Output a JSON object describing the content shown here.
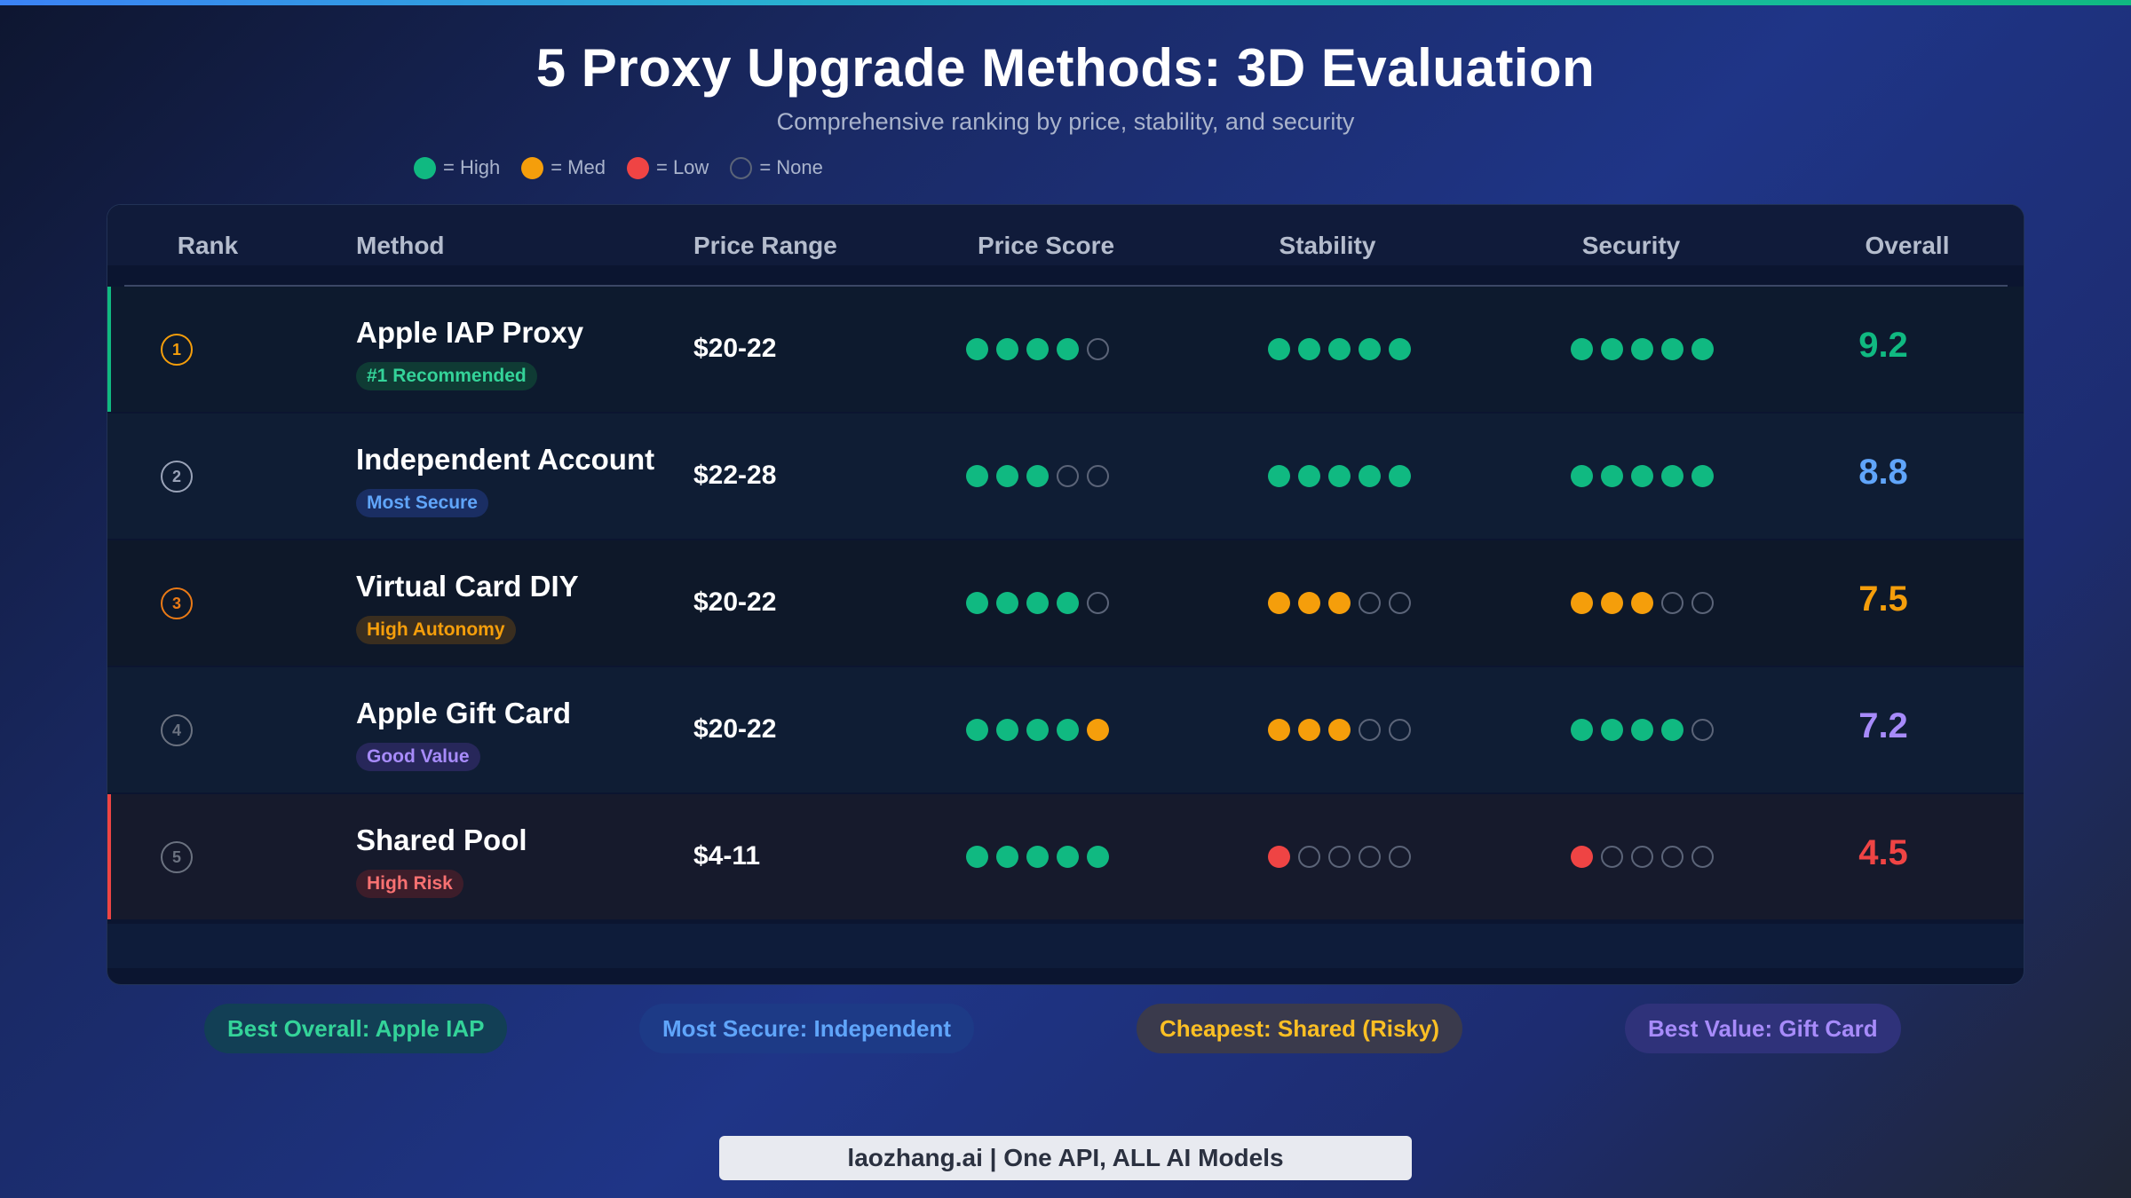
{
  "title": "5 Proxy Upgrade Methods: 3D Evaluation",
  "subtitle": "Comprehensive ranking by price, stability, and security",
  "legend": [
    {
      "label": "= High",
      "color": "#10b981",
      "kind": "high"
    },
    {
      "label": "= Med",
      "color": "#f59e0b",
      "kind": "med"
    },
    {
      "label": "= Low",
      "color": "#ef4444",
      "kind": "low"
    },
    {
      "label": "= None",
      "color": "",
      "kind": "none"
    }
  ],
  "columns": {
    "rank": "Rank",
    "method": "Method",
    "price_range": "Price Range",
    "price_score": "Price Score",
    "stability": "Stability",
    "security": "Security",
    "overall": "Overall"
  },
  "colors": {
    "high": "#10b981",
    "med": "#f59e0b",
    "low": "#ef4444"
  },
  "chart_data": {
    "type": "table",
    "title": "5 Proxy Upgrade Methods: 3D Evaluation",
    "rows": [
      {
        "rank": "1",
        "method": "Apple IAP Proxy",
        "badge": "#1 Recommended",
        "price_range": "$20-22",
        "price_score": [
          "high",
          "high",
          "high",
          "high",
          "none"
        ],
        "stability": [
          "high",
          "high",
          "high",
          "high",
          "high"
        ],
        "security": [
          "high",
          "high",
          "high",
          "high",
          "high"
        ],
        "overall": "9.2",
        "accent": "#10b981",
        "badge_text": "#34d399",
        "badge_bg": "#0f3b34",
        "rank_color": "#f59e0b",
        "overall_color": "#10b981"
      },
      {
        "rank": "2",
        "method": "Independent Account",
        "badge": "Most Secure",
        "price_range": "$22-28",
        "price_score": [
          "high",
          "high",
          "high",
          "none",
          "none"
        ],
        "stability": [
          "high",
          "high",
          "high",
          "high",
          "high"
        ],
        "security": [
          "high",
          "high",
          "high",
          "high",
          "high"
        ],
        "overall": "8.8",
        "accent": "",
        "badge_text": "#60a5fa",
        "badge_bg": "#1a2e63",
        "rank_color": "#9aa3b8",
        "overall_color": "#60a5fa"
      },
      {
        "rank": "3",
        "method": "Virtual Card DIY",
        "badge": "High Autonomy",
        "price_range": "$20-22",
        "price_score": [
          "high",
          "high",
          "high",
          "high",
          "none"
        ],
        "stability": [
          "med",
          "med",
          "med",
          "none",
          "none"
        ],
        "security": [
          "med",
          "med",
          "med",
          "none",
          "none"
        ],
        "overall": "7.5",
        "accent": "",
        "badge_text": "#f59e0b",
        "badge_bg": "#3a2e1f",
        "rank_color": "#ea7a16",
        "overall_color": "#f59e0b"
      },
      {
        "rank": "4",
        "method": "Apple Gift Card",
        "badge": "Good Value",
        "price_range": "$20-22",
        "price_score": [
          "high",
          "high",
          "high",
          "high",
          "med"
        ],
        "stability": [
          "med",
          "med",
          "med",
          "none",
          "none"
        ],
        "security": [
          "high",
          "high",
          "high",
          "high",
          "none"
        ],
        "overall": "7.2",
        "accent": "",
        "badge_text": "#a78bfa",
        "badge_bg": "#27275a",
        "rank_color": "#6b7280",
        "overall_color": "#a78bfa"
      },
      {
        "rank": "5",
        "method": "Shared Pool",
        "badge": "High Risk",
        "price_range": "$4-11",
        "price_score": [
          "high",
          "high",
          "high",
          "high",
          "high"
        ],
        "stability": [
          "low",
          "none",
          "none",
          "none",
          "none"
        ],
        "security": [
          "low",
          "none",
          "none",
          "none",
          "none"
        ],
        "overall": "4.5",
        "accent": "#ef4444",
        "badge_text": "#f87171",
        "badge_bg": "#3d1d2a",
        "rank_color": "#6b7280",
        "overall_color": "#ef4444"
      }
    ]
  },
  "summary": [
    {
      "label": "Best Overall: Apple IAP",
      "text": "#34d399",
      "bg": "#123f55"
    },
    {
      "label": "Most Secure: Independent",
      "text": "#60a5fa",
      "bg": "#1d3a86"
    },
    {
      "label": "Cheapest: Shared (Risky)",
      "text": "#fbbf24",
      "bg": "#3a3a4c"
    },
    {
      "label": "Best Value: Gift Card",
      "text": "#a78bfa",
      "bg": "#2f327a"
    }
  ],
  "footer": "laozhang.ai | One API, ALL AI Models"
}
